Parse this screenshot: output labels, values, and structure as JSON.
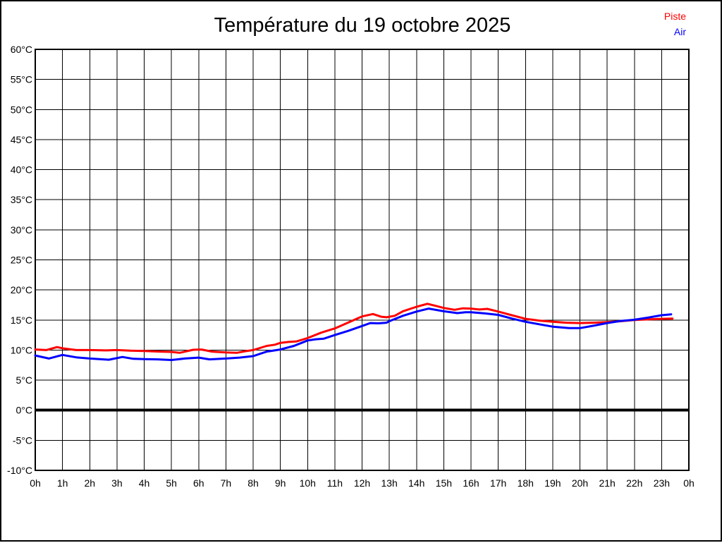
{
  "title": "Température du 19 octobre 2025",
  "legend": {
    "items": [
      {
        "label": "Piste",
        "color": "#ff0000"
      },
      {
        "label": "Air",
        "color": "#0000ff"
      }
    ]
  },
  "chart_data": {
    "type": "line",
    "title": "Température du 19 octobre 2025",
    "xlabel": "",
    "ylabel": "",
    "x_unit": "h",
    "y_unit": "°C",
    "xlim": [
      0,
      24
    ],
    "ylim": [
      -10,
      60
    ],
    "grid": true,
    "legend_position": "top-right",
    "zero_line_value": 0,
    "x_ticks": [
      0,
      1,
      2,
      3,
      4,
      5,
      6,
      7,
      8,
      9,
      10,
      11,
      12,
      13,
      14,
      15,
      16,
      17,
      18,
      19,
      20,
      21,
      22,
      23,
      24
    ],
    "x_tick_labels": [
      "0h",
      "1h",
      "2h",
      "3h",
      "4h",
      "5h",
      "6h",
      "7h",
      "8h",
      "9h",
      "10h",
      "11h",
      "12h",
      "13h",
      "14h",
      "15h",
      "16h",
      "17h",
      "18h",
      "19h",
      "20h",
      "21h",
      "22h",
      "23h",
      "0h"
    ],
    "y_ticks": [
      60,
      55,
      50,
      45,
      40,
      35,
      30,
      25,
      20,
      15,
      10,
      5,
      0,
      -5,
      -10
    ],
    "y_tick_labels": [
      "60°C",
      "55°C",
      "50°C",
      "45°C",
      "40°C",
      "35°C",
      "30°C",
      "25°C",
      "20°C",
      "15°C",
      "10°C",
      "5°C",
      "0°C",
      "-5°C",
      "-10°C"
    ],
    "series": [
      {
        "name": "Piste",
        "color": "#ff0000",
        "points": [
          [
            0,
            10.1
          ],
          [
            0.4,
            10.0
          ],
          [
            0.8,
            10.5
          ],
          [
            1.0,
            10.3
          ],
          [
            1.5,
            10.0
          ],
          [
            2.0,
            10.0
          ],
          [
            2.6,
            9.95
          ],
          [
            3.0,
            10.0
          ],
          [
            3.5,
            9.9
          ],
          [
            4.0,
            9.85
          ],
          [
            4.6,
            9.75
          ],
          [
            5.0,
            9.7
          ],
          [
            5.3,
            9.55
          ],
          [
            5.8,
            10.05
          ],
          [
            6.1,
            10.1
          ],
          [
            6.5,
            9.75
          ],
          [
            7.0,
            9.6
          ],
          [
            7.4,
            9.55
          ],
          [
            7.7,
            9.8
          ],
          [
            8.0,
            10.0
          ],
          [
            8.5,
            10.7
          ],
          [
            8.8,
            10.9
          ],
          [
            9.0,
            11.2
          ],
          [
            9.3,
            11.35
          ],
          [
            9.6,
            11.45
          ],
          [
            10.0,
            12.0
          ],
          [
            10.5,
            12.9
          ],
          [
            11.0,
            13.6
          ],
          [
            11.5,
            14.6
          ],
          [
            12.0,
            15.6
          ],
          [
            12.4,
            16.0
          ],
          [
            12.7,
            15.55
          ],
          [
            12.9,
            15.45
          ],
          [
            13.2,
            15.7
          ],
          [
            13.5,
            16.45
          ],
          [
            14.0,
            17.2
          ],
          [
            14.4,
            17.7
          ],
          [
            14.7,
            17.35
          ],
          [
            15.0,
            17.0
          ],
          [
            15.4,
            16.7
          ],
          [
            15.7,
            16.95
          ],
          [
            16.0,
            16.9
          ],
          [
            16.3,
            16.75
          ],
          [
            16.6,
            16.85
          ],
          [
            17.0,
            16.4
          ],
          [
            17.5,
            15.8
          ],
          [
            18.0,
            15.2
          ],
          [
            18.5,
            14.9
          ],
          [
            19.0,
            14.7
          ],
          [
            19.5,
            14.55
          ],
          [
            20.0,
            14.5
          ],
          [
            20.5,
            14.55
          ],
          [
            21.0,
            14.65
          ],
          [
            21.5,
            14.8
          ],
          [
            22.0,
            15.0
          ],
          [
            22.5,
            15.1
          ],
          [
            23.0,
            15.2
          ],
          [
            23.4,
            15.25
          ]
        ]
      },
      {
        "name": "Air",
        "color": "#0000ff",
        "points": [
          [
            0,
            9.1
          ],
          [
            0.5,
            8.6
          ],
          [
            1.0,
            9.2
          ],
          [
            1.5,
            8.8
          ],
          [
            2.0,
            8.6
          ],
          [
            2.7,
            8.4
          ],
          [
            3.2,
            8.85
          ],
          [
            3.6,
            8.55
          ],
          [
            4.0,
            8.5
          ],
          [
            4.5,
            8.45
          ],
          [
            5.0,
            8.35
          ],
          [
            5.5,
            8.6
          ],
          [
            6.0,
            8.75
          ],
          [
            6.4,
            8.45
          ],
          [
            7.0,
            8.6
          ],
          [
            7.5,
            8.75
          ],
          [
            8.0,
            9.0
          ],
          [
            8.5,
            9.75
          ],
          [
            9.0,
            10.1
          ],
          [
            9.5,
            10.7
          ],
          [
            10.0,
            11.6
          ],
          [
            10.3,
            11.8
          ],
          [
            10.6,
            11.9
          ],
          [
            11.0,
            12.5
          ],
          [
            11.5,
            13.2
          ],
          [
            12.0,
            14.0
          ],
          [
            12.3,
            14.5
          ],
          [
            12.6,
            14.45
          ],
          [
            12.9,
            14.55
          ],
          [
            13.0,
            14.8
          ],
          [
            13.5,
            15.7
          ],
          [
            14.0,
            16.4
          ],
          [
            14.45,
            16.9
          ],
          [
            15.0,
            16.45
          ],
          [
            15.5,
            16.15
          ],
          [
            15.8,
            16.3
          ],
          [
            16.0,
            16.3
          ],
          [
            16.5,
            16.1
          ],
          [
            17.0,
            15.85
          ],
          [
            17.5,
            15.25
          ],
          [
            18.0,
            14.7
          ],
          [
            18.5,
            14.3
          ],
          [
            19.0,
            13.9
          ],
          [
            19.6,
            13.65
          ],
          [
            20.0,
            13.65
          ],
          [
            20.5,
            14.05
          ],
          [
            21.0,
            14.5
          ],
          [
            21.5,
            14.85
          ],
          [
            22.0,
            15.05
          ],
          [
            22.5,
            15.4
          ],
          [
            23.0,
            15.8
          ],
          [
            23.35,
            15.95
          ]
        ]
      }
    ]
  },
  "plot_style": {
    "grid_color": "#000000",
    "axis_border_color": "#000000",
    "zero_line_color": "#000000",
    "background": "#ffffff"
  }
}
